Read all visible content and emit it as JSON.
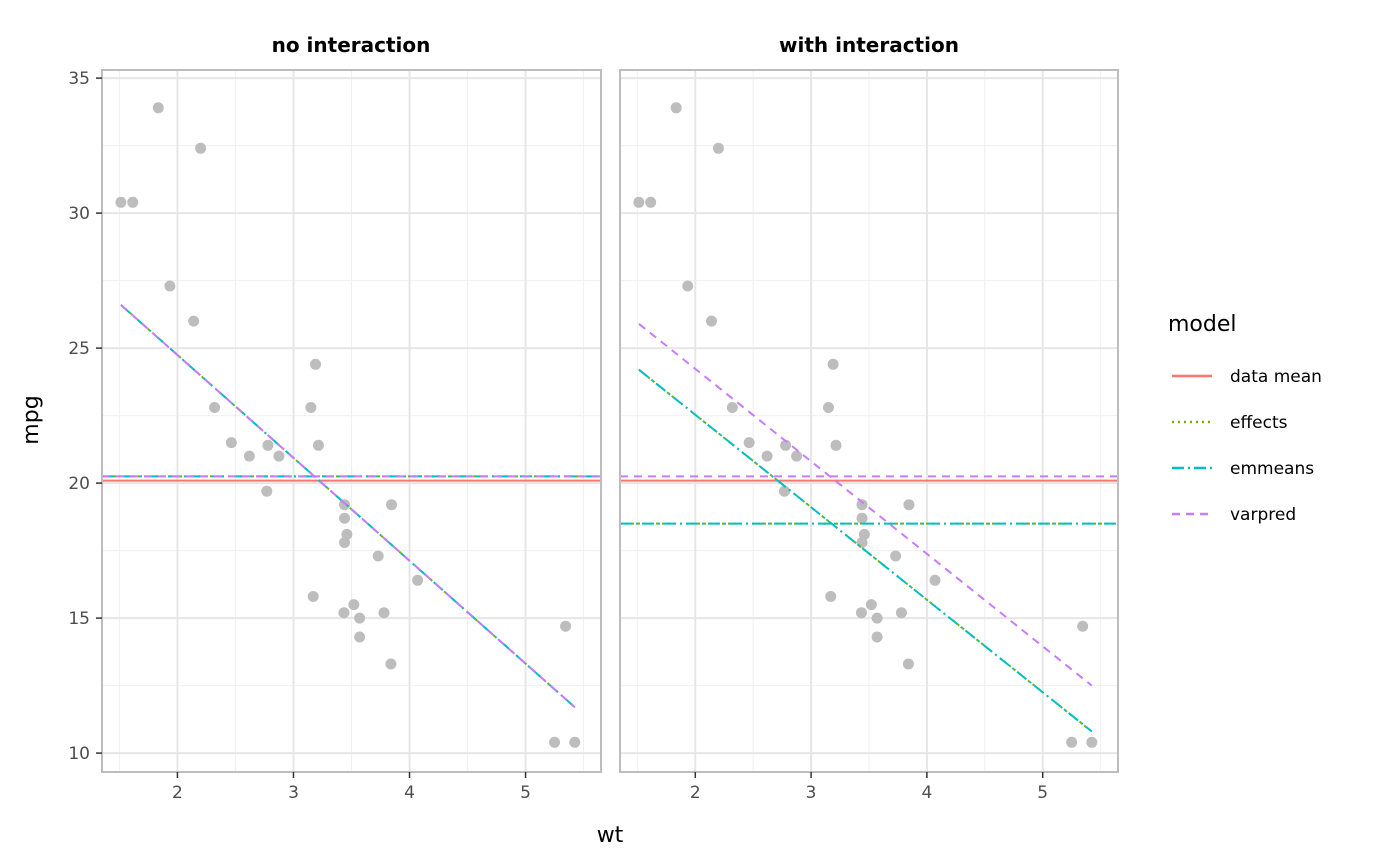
{
  "chart_data": {
    "type": "scatter",
    "xlabel": "wt",
    "ylabel": "mpg",
    "xlim": [
      1.35,
      5.65
    ],
    "ylim": [
      9.3,
      35.3
    ],
    "x_ticks": [
      2,
      3,
      4,
      5
    ],
    "y_ticks": [
      10,
      15,
      20,
      25,
      30,
      35
    ],
    "x_tick_labels": [
      "2",
      "3",
      "4",
      "5"
    ],
    "y_tick_labels": [
      "10",
      "15",
      "20",
      "25",
      "30",
      "35"
    ],
    "grid": true,
    "point_color": "#bdbdbd",
    "points": [
      {
        "x": 1.513,
        "y": 30.4
      },
      {
        "x": 1.615,
        "y": 30.4
      },
      {
        "x": 1.835,
        "y": 33.9
      },
      {
        "x": 1.935,
        "y": 27.3
      },
      {
        "x": 2.14,
        "y": 26.0
      },
      {
        "x": 2.2,
        "y": 32.4
      },
      {
        "x": 2.32,
        "y": 22.8
      },
      {
        "x": 2.465,
        "y": 21.5
      },
      {
        "x": 2.62,
        "y": 21.0
      },
      {
        "x": 2.77,
        "y": 19.7
      },
      {
        "x": 2.78,
        "y": 21.4
      },
      {
        "x": 2.875,
        "y": 21.0
      },
      {
        "x": 3.15,
        "y": 22.8
      },
      {
        "x": 3.17,
        "y": 15.8
      },
      {
        "x": 3.19,
        "y": 24.4
      },
      {
        "x": 3.215,
        "y": 21.4
      },
      {
        "x": 3.435,
        "y": 15.2
      },
      {
        "x": 3.44,
        "y": 18.7
      },
      {
        "x": 3.44,
        "y": 19.2
      },
      {
        "x": 3.44,
        "y": 17.8
      },
      {
        "x": 3.46,
        "y": 18.1
      },
      {
        "x": 3.52,
        "y": 15.5
      },
      {
        "x": 3.57,
        "y": 15.0
      },
      {
        "x": 3.57,
        "y": 14.3
      },
      {
        "x": 3.73,
        "y": 17.3
      },
      {
        "x": 3.78,
        "y": 15.2
      },
      {
        "x": 3.84,
        "y": 13.3
      },
      {
        "x": 3.845,
        "y": 19.2
      },
      {
        "x": 4.07,
        "y": 16.4
      },
      {
        "x": 5.25,
        "y": 10.4
      },
      {
        "x": 5.345,
        "y": 14.7
      },
      {
        "x": 5.424,
        "y": 10.4
      }
    ],
    "legend": {
      "title": "model",
      "placement": "right",
      "entries": [
        {
          "label": "data mean",
          "color": "#F8766D",
          "dash": "solid"
        },
        {
          "label": "effects",
          "color": "#7CAE00",
          "dash": "dotted"
        },
        {
          "label": "emmeans",
          "color": "#00BFC4",
          "dash": "dotdash"
        },
        {
          "label": "varpred",
          "color": "#C77CFF",
          "dash": "dashed"
        }
      ]
    },
    "panels": [
      {
        "title": "no interaction",
        "hlines": [
          {
            "model": "data mean",
            "y": 20.09
          },
          {
            "model": "effects",
            "y": 20.25
          },
          {
            "model": "emmeans",
            "y": 20.25
          },
          {
            "model": "varpred",
            "y": 20.25
          }
        ],
        "lines": [
          {
            "model": "effects",
            "x": [
              1.513,
              5.424
            ],
            "y": [
              26.6,
              11.7
            ]
          },
          {
            "model": "emmeans",
            "x": [
              1.513,
              5.424
            ],
            "y": [
              26.6,
              11.7
            ]
          },
          {
            "model": "varpred",
            "x": [
              1.513,
              5.424
            ],
            "y": [
              26.6,
              11.7
            ]
          }
        ]
      },
      {
        "title": "with interaction",
        "hlines": [
          {
            "model": "data mean",
            "y": 20.09
          },
          {
            "model": "effects",
            "y": 18.5
          },
          {
            "model": "emmeans",
            "y": 18.5
          },
          {
            "model": "varpred",
            "y": 20.25
          }
        ],
        "lines": [
          {
            "model": "effects",
            "x": [
              1.513,
              5.424
            ],
            "y": [
              24.2,
              10.8
            ]
          },
          {
            "model": "emmeans",
            "x": [
              1.513,
              5.424
            ],
            "y": [
              24.2,
              10.8
            ]
          },
          {
            "model": "varpred",
            "x": [
              1.513,
              5.424
            ],
            "y": [
              25.9,
              12.5
            ]
          }
        ]
      }
    ]
  }
}
